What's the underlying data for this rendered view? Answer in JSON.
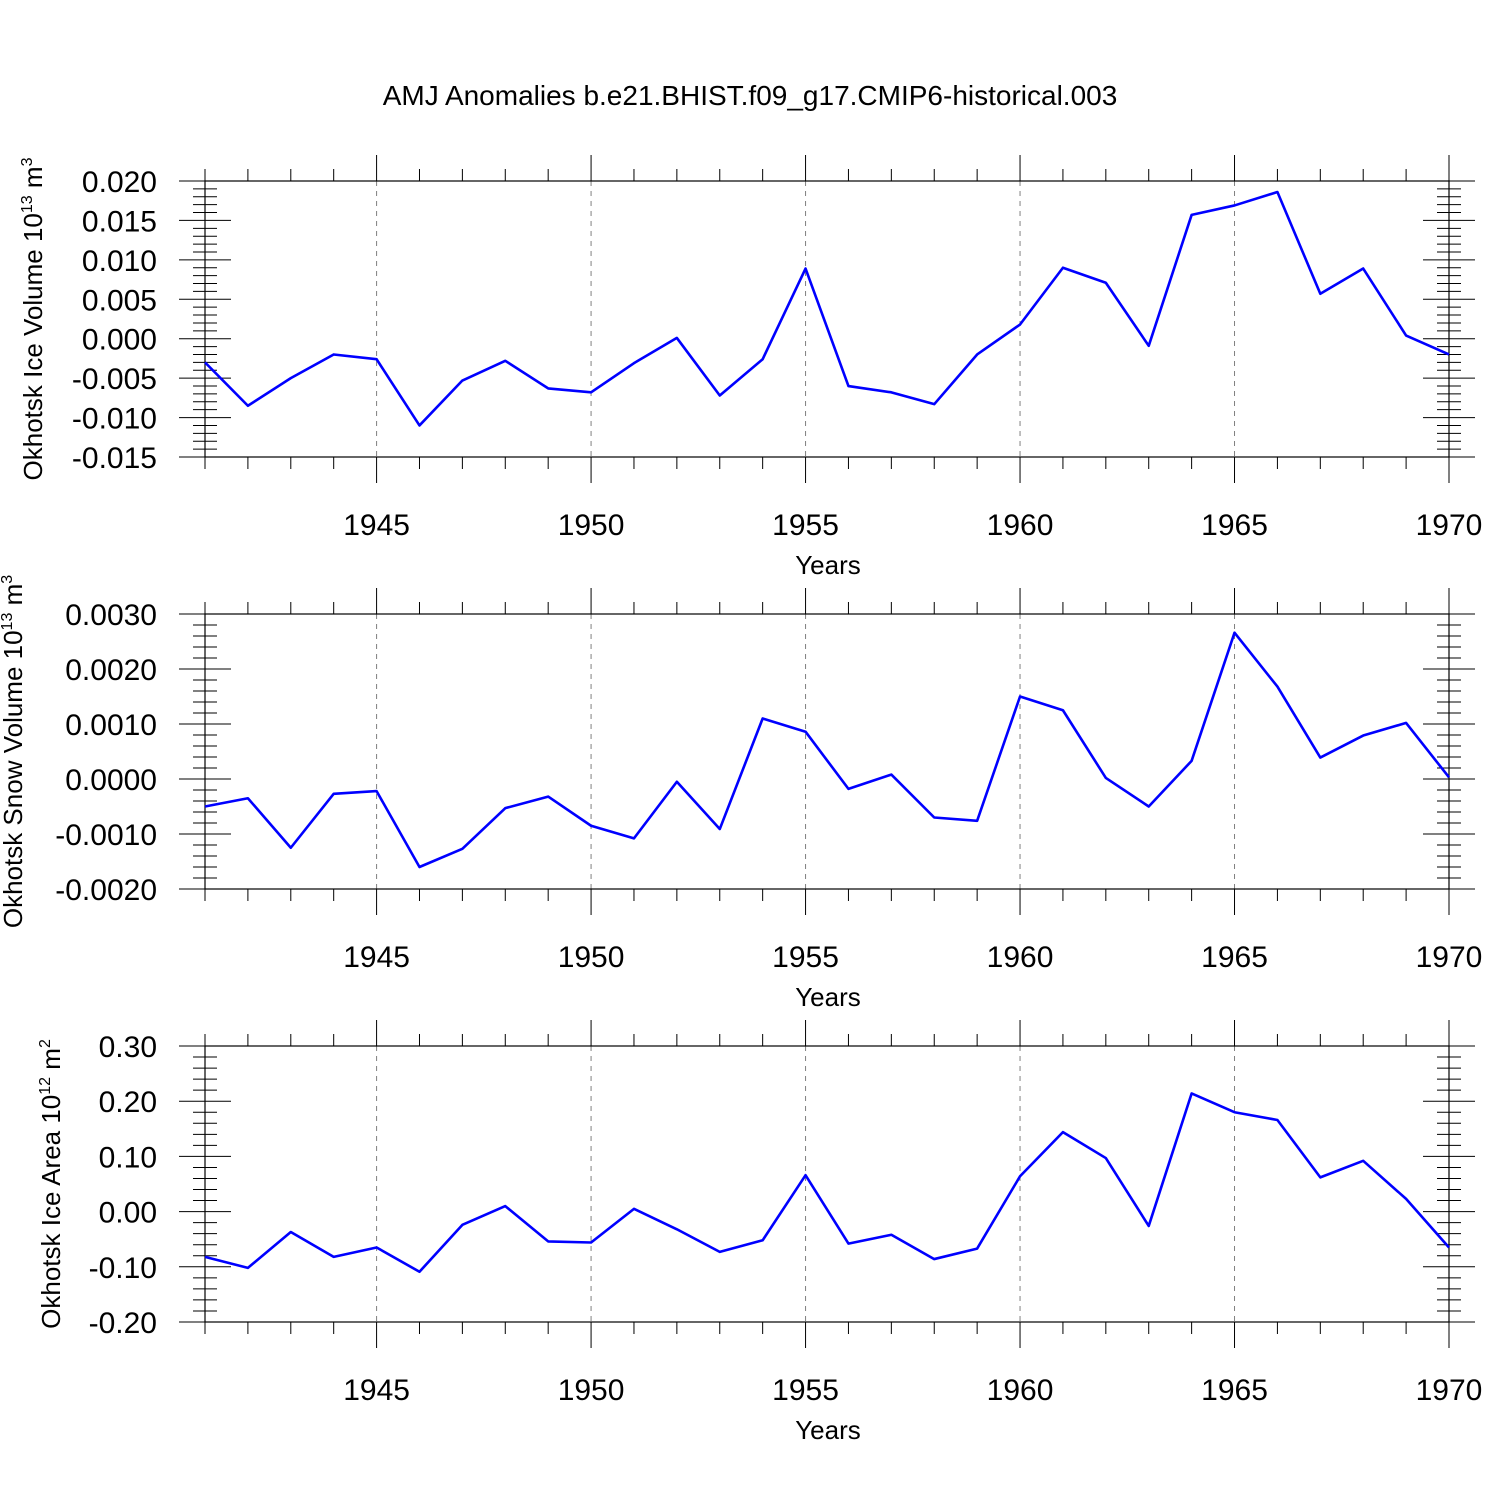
{
  "title": "AMJ Anomalies b.e21.BHIST.f09_g17.CMIP6-historical.003",
  "colors": {
    "line": "#0000ff",
    "axis": "#000000",
    "grid": "#808080"
  },
  "chart_data": [
    {
      "type": "line",
      "xlabel": "Years",
      "ylabel": {
        "main": "Okhotsk Ice Volume 10",
        "exp": "13",
        "unit": " m",
        "unit_exp": "3"
      },
      "xlim": [
        1941,
        1970
      ],
      "ylim": [
        -0.015,
        0.02
      ],
      "yticks": [
        -0.015,
        -0.01,
        -0.005,
        0.0,
        0.005,
        0.01,
        0.015,
        0.02
      ],
      "ytick_labels": [
        "-0.015",
        "-0.010",
        "-0.005",
        "0.000",
        "0.005",
        "0.010",
        "0.015",
        "0.020"
      ],
      "yminor_step": 0.001,
      "xticks": [
        1945,
        1950,
        1955,
        1960,
        1965,
        1970
      ],
      "xtick_labels": [
        "1945",
        "1950",
        "1955",
        "1960",
        "1965",
        "1970"
      ],
      "x": [
        1941,
        1942,
        1943,
        1944,
        1945,
        1946,
        1947,
        1948,
        1949,
        1950,
        1951,
        1952,
        1953,
        1954,
        1955,
        1956,
        1957,
        1958,
        1959,
        1960,
        1961,
        1962,
        1963,
        1964,
        1965,
        1966,
        1967,
        1968,
        1969,
        1970
      ],
      "series": [
        {
          "values": [
            -0.003,
            -0.0085,
            -0.005,
            -0.002,
            -0.0026,
            -0.011,
            -0.0053,
            -0.0028,
            -0.0063,
            -0.0068,
            -0.0031,
            0.0001,
            -0.0072,
            -0.0026,
            0.0089,
            -0.006,
            -0.0068,
            -0.0083,
            -0.002,
            0.0018,
            0.009,
            0.0071,
            -0.0009,
            0.0157,
            0.0169,
            0.0186,
            0.0057,
            0.0089,
            0.0004,
            -0.002
          ]
        }
      ],
      "grid": "dashed vertical at major x ticks"
    },
    {
      "type": "line",
      "xlabel": "Years",
      "ylabel": {
        "main": "Okhotsk Snow Volume 10",
        "exp": "13",
        "unit": " m",
        "unit_exp": "3"
      },
      "xlim": [
        1941,
        1970
      ],
      "ylim": [
        -0.002,
        0.003
      ],
      "yticks": [
        -0.002,
        -0.001,
        0.0,
        0.001,
        0.002,
        0.003
      ],
      "ytick_labels": [
        "-0.0020",
        "-0.0010",
        "0.0000",
        "0.0010",
        "0.0020",
        "0.0030"
      ],
      "yminor_step": 0.0002,
      "xticks": [
        1945,
        1950,
        1955,
        1960,
        1965,
        1970
      ],
      "xtick_labels": [
        "1945",
        "1950",
        "1955",
        "1960",
        "1965",
        "1970"
      ],
      "x": [
        1941,
        1942,
        1943,
        1944,
        1945,
        1946,
        1947,
        1948,
        1949,
        1950,
        1951,
        1952,
        1953,
        1954,
        1955,
        1956,
        1957,
        1958,
        1959,
        1960,
        1961,
        1962,
        1963,
        1964,
        1965,
        1966,
        1967,
        1968,
        1969,
        1970
      ],
      "series": [
        {
          "values": [
            -0.0005,
            -0.00035,
            -0.00125,
            -0.00027,
            -0.00022,
            -0.0016,
            -0.00127,
            -0.00053,
            -0.00032,
            -0.00085,
            -0.00108,
            -5e-05,
            -0.00091,
            0.0011,
            0.00086,
            -0.00018,
            8e-05,
            -0.0007,
            -0.00076,
            0.0015,
            0.00125,
            2e-05,
            -0.0005,
            0.00033,
            0.00266,
            0.00168,
            0.00039,
            0.00079,
            0.00102,
            3e-05
          ]
        }
      ],
      "grid": "dashed vertical at major x ticks"
    },
    {
      "type": "line",
      "xlabel": "Years",
      "ylabel": {
        "main": "Okhotsk Ice Area 10",
        "exp": "12",
        "unit": " m",
        "unit_exp": "2"
      },
      "xlim": [
        1941,
        1970
      ],
      "ylim": [
        -0.2,
        0.3
      ],
      "yticks": [
        -0.2,
        -0.1,
        0.0,
        0.1,
        0.2,
        0.3
      ],
      "ytick_labels": [
        "-0.20",
        "-0.10",
        "0.00",
        "0.10",
        "0.20",
        "0.30"
      ],
      "yminor_step": 0.02,
      "xticks": [
        1945,
        1950,
        1955,
        1960,
        1965,
        1970
      ],
      "xtick_labels": [
        "1945",
        "1950",
        "1955",
        "1960",
        "1965",
        "1970"
      ],
      "x": [
        1941,
        1942,
        1943,
        1944,
        1945,
        1946,
        1947,
        1948,
        1949,
        1950,
        1951,
        1952,
        1953,
        1954,
        1955,
        1956,
        1957,
        1958,
        1959,
        1960,
        1961,
        1962,
        1963,
        1964,
        1965,
        1966,
        1967,
        1968,
        1969,
        1970
      ],
      "series": [
        {
          "values": [
            -0.082,
            -0.102,
            -0.037,
            -0.082,
            -0.065,
            -0.109,
            -0.024,
            0.01,
            -0.054,
            -0.056,
            0.005,
            -0.032,
            -0.073,
            -0.052,
            0.066,
            -0.058,
            -0.042,
            -0.086,
            -0.067,
            0.064,
            0.144,
            0.097,
            -0.026,
            0.214,
            0.18,
            0.166,
            0.062,
            0.092,
            0.023,
            -0.065
          ]
        }
      ],
      "grid": "dashed vertical at major x ticks"
    }
  ]
}
